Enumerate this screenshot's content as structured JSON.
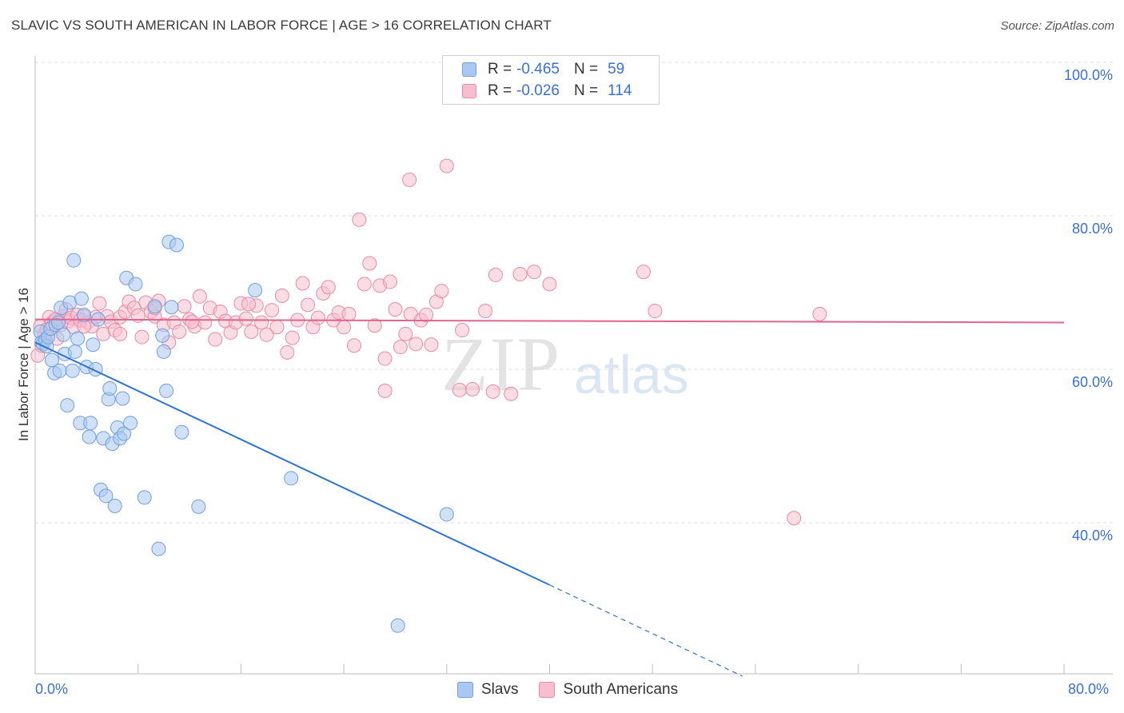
{
  "header": {
    "title": "SLAVIC VS SOUTH AMERICAN IN LABOR FORCE | AGE > 16 CORRELATION CHART",
    "source": "Source: ZipAtlas.com"
  },
  "watermark": {
    "zip": "ZIP",
    "atlas": "atlas"
  },
  "legend": {
    "slavs": {
      "r_label": "R =",
      "r_value": "-0.465",
      "n_label": "N =",
      "n_value": "59"
    },
    "south": {
      "r_label": "R =",
      "r_value": "-0.026",
      "n_label": "N =",
      "n_value": "114"
    }
  },
  "bottom_legend": {
    "slavs": "Slavs",
    "south": "South Americans"
  },
  "colors": {
    "slavs_fill": "#aac8f0",
    "slavs_stroke": "#6f9fe0",
    "slavs_line": "#2e74d0",
    "south_fill": "#f6bfd0",
    "south_stroke": "#e98aa8",
    "south_line": "#e0648e",
    "grid": "#dddddd",
    "tick_text": "#3a6fd8"
  },
  "chart_data": {
    "type": "scatter",
    "title": "SLAVIC VS SOUTH AMERICAN IN LABOR FORCE | AGE > 16 CORRELATION CHART",
    "xlabel": "",
    "ylabel": "In Labor Force | Age > 16",
    "xlim": [
      0,
      80
    ],
    "ylim": [
      18,
      102
    ],
    "x_tick_labels": [
      "0.0%",
      "80.0%"
    ],
    "y_ticks": [
      40,
      60,
      80,
      100
    ],
    "y_tick_labels": [
      "40.0%",
      "60.0%",
      "80.0%",
      "100.0%"
    ],
    "grid": true,
    "legend_position": "top-center",
    "series": [
      {
        "name": "Slavs",
        "r": -0.465,
        "n": 59,
        "trend": {
          "x0": 0,
          "y0": 63.5,
          "x1": 40,
          "y1": 31.9,
          "dashed_to_x": 55,
          "dashed_to_y": 20.0
        },
        "points": [
          [
            0.4,
            64.9
          ],
          [
            0.5,
            63.5
          ],
          [
            0.6,
            63.3
          ],
          [
            0.8,
            63.8
          ],
          [
            0.9,
            63.0
          ],
          [
            1.0,
            64.2
          ],
          [
            1.2,
            65.3
          ],
          [
            1.3,
            61.2
          ],
          [
            1.5,
            59.5
          ],
          [
            1.6,
            65.8
          ],
          [
            1.8,
            66.1
          ],
          [
            1.9,
            59.8
          ],
          [
            2.0,
            68.0
          ],
          [
            2.2,
            64.5
          ],
          [
            2.3,
            62.0
          ],
          [
            2.5,
            55.3
          ],
          [
            2.7,
            68.7
          ],
          [
            2.9,
            59.8
          ],
          [
            3.1,
            62.3
          ],
          [
            3.3,
            64.0
          ],
          [
            3.5,
            53.0
          ],
          [
            3.6,
            69.2
          ],
          [
            3.8,
            67.1
          ],
          [
            4.0,
            60.3
          ],
          [
            4.2,
            51.2
          ],
          [
            4.3,
            53.0
          ],
          [
            4.5,
            63.2
          ],
          [
            4.7,
            60.0
          ],
          [
            4.9,
            66.5
          ],
          [
            5.1,
            44.3
          ],
          [
            5.3,
            51.0
          ],
          [
            5.5,
            43.5
          ],
          [
            5.7,
            56.1
          ],
          [
            5.8,
            57.5
          ],
          [
            6.0,
            50.3
          ],
          [
            6.2,
            42.2
          ],
          [
            6.4,
            52.4
          ],
          [
            6.6,
            51.0
          ],
          [
            6.8,
            56.2
          ],
          [
            6.9,
            51.6
          ],
          [
            7.1,
            71.9
          ],
          [
            7.4,
            53.0
          ],
          [
            7.8,
            71.1
          ],
          [
            8.5,
            43.3
          ],
          [
            9.3,
            68.2
          ],
          [
            9.6,
            36.6
          ],
          [
            9.9,
            64.4
          ],
          [
            10.0,
            62.3
          ],
          [
            10.2,
            57.2
          ],
          [
            10.4,
            76.6
          ],
          [
            10.6,
            68.1
          ],
          [
            11.0,
            76.2
          ],
          [
            11.4,
            51.8
          ],
          [
            12.7,
            42.1
          ],
          [
            17.1,
            70.3
          ],
          [
            19.9,
            45.8
          ],
          [
            28.2,
            26.6
          ],
          [
            32.0,
            41.1
          ],
          [
            3.0,
            74.2
          ]
        ]
      },
      {
        "name": "South Americans",
        "r": -0.026,
        "n": 114,
        "trend": {
          "x0": 0,
          "y0": 66.5,
          "x1": 80,
          "y1": 66.1
        },
        "points": [
          [
            0.2,
            61.8
          ],
          [
            0.4,
            65.6
          ],
          [
            0.5,
            63.1
          ],
          [
            0.7,
            64.5
          ],
          [
            0.9,
            65.2
          ],
          [
            1.1,
            66.8
          ],
          [
            1.3,
            66.0
          ],
          [
            1.5,
            66.2
          ],
          [
            1.7,
            64.0
          ],
          [
            2.0,
            65.8
          ],
          [
            2.2,
            66.9
          ],
          [
            2.4,
            67.8
          ],
          [
            2.6,
            66.3
          ],
          [
            2.8,
            66.7
          ],
          [
            3.0,
            65.5
          ],
          [
            3.3,
            67.1
          ],
          [
            3.5,
            66.4
          ],
          [
            3.8,
            66.9
          ],
          [
            4.1,
            66.1
          ],
          [
            4.4,
            65.6
          ],
          [
            4.7,
            66.8
          ],
          [
            5.0,
            68.6
          ],
          [
            5.3,
            64.6
          ],
          [
            5.6,
            66.9
          ],
          [
            5.9,
            66.2
          ],
          [
            6.2,
            65.1
          ],
          [
            6.6,
            66.8
          ],
          [
            7.0,
            67.5
          ],
          [
            7.3,
            68.8
          ],
          [
            7.7,
            68.0
          ],
          [
            8.0,
            67.0
          ],
          [
            8.3,
            64.2
          ],
          [
            8.6,
            68.7
          ],
          [
            9.0,
            67.5
          ],
          [
            9.3,
            66.9
          ],
          [
            9.6,
            68.9
          ],
          [
            10.0,
            65.8
          ],
          [
            10.4,
            63.5
          ],
          [
            10.8,
            66.1
          ],
          [
            11.2,
            64.9
          ],
          [
            11.6,
            68.2
          ],
          [
            12.0,
            66.5
          ],
          [
            12.4,
            65.6
          ],
          [
            12.8,
            69.5
          ],
          [
            13.2,
            66.1
          ],
          [
            13.6,
            68.0
          ],
          [
            14.0,
            63.9
          ],
          [
            14.4,
            67.5
          ],
          [
            14.8,
            66.3
          ],
          [
            15.2,
            64.8
          ],
          [
            15.6,
            66.1
          ],
          [
            16.0,
            68.6
          ],
          [
            16.4,
            66.6
          ],
          [
            16.8,
            64.9
          ],
          [
            17.2,
            68.3
          ],
          [
            17.6,
            66.1
          ],
          [
            18.0,
            64.5
          ],
          [
            18.4,
            67.7
          ],
          [
            18.8,
            65.5
          ],
          [
            19.2,
            69.6
          ],
          [
            19.6,
            62.2
          ],
          [
            20.0,
            64.1
          ],
          [
            20.4,
            66.4
          ],
          [
            20.8,
            71.2
          ],
          [
            21.2,
            68.4
          ],
          [
            21.6,
            65.5
          ],
          [
            22.0,
            66.7
          ],
          [
            22.4,
            69.9
          ],
          [
            22.8,
            70.7
          ],
          [
            23.2,
            66.4
          ],
          [
            23.6,
            67.4
          ],
          [
            24.0,
            65.5
          ],
          [
            24.4,
            67.2
          ],
          [
            24.8,
            63.1
          ],
          [
            25.2,
            79.5
          ],
          [
            25.6,
            71.1
          ],
          [
            26.0,
            73.8
          ],
          [
            26.4,
            65.7
          ],
          [
            26.8,
            70.9
          ],
          [
            27.2,
            61.4
          ],
          [
            27.6,
            71.4
          ],
          [
            28.0,
            67.8
          ],
          [
            28.4,
            62.9
          ],
          [
            28.8,
            64.6
          ],
          [
            29.2,
            67.2
          ],
          [
            29.6,
            63.3
          ],
          [
            30.0,
            66.4
          ],
          [
            30.4,
            67.1
          ],
          [
            30.8,
            63.2
          ],
          [
            31.2,
            68.8
          ],
          [
            31.6,
            70.2
          ],
          [
            32.0,
            86.5
          ],
          [
            33.0,
            57.3
          ],
          [
            34.0,
            57.4
          ],
          [
            35.0,
            67.6
          ],
          [
            35.6,
            57.1
          ],
          [
            35.8,
            72.3
          ],
          [
            37.0,
            56.8
          ],
          [
            37.7,
            72.4
          ],
          [
            38.8,
            72.7
          ],
          [
            40.0,
            71.1
          ],
          [
            47.3,
            72.7
          ],
          [
            48.2,
            67.6
          ],
          [
            59.0,
            40.6
          ],
          [
            61.0,
            67.2
          ],
          [
            29.1,
            84.7
          ],
          [
            27.2,
            57.2
          ],
          [
            33.2,
            65.1
          ],
          [
            16.6,
            68.5
          ],
          [
            12.2,
            66.2
          ],
          [
            9.3,
            68.0
          ],
          [
            6.6,
            64.6
          ],
          [
            3.8,
            65.6
          ],
          [
            1.6,
            66.5
          ]
        ]
      }
    ]
  }
}
